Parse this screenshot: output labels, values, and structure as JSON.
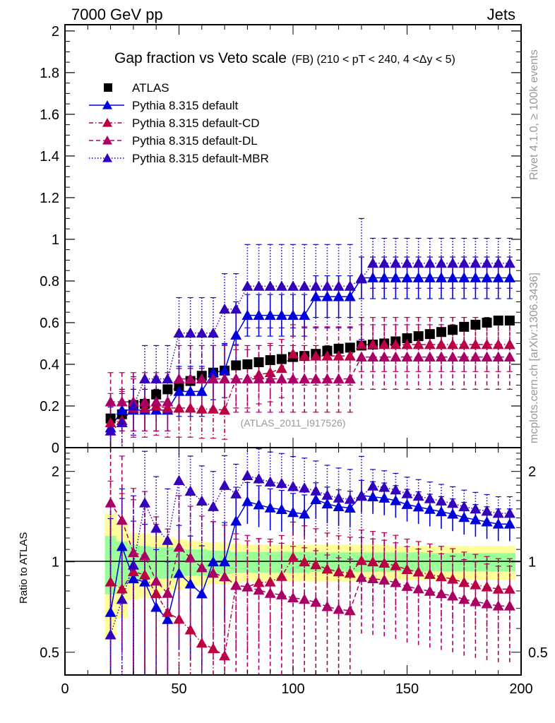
{
  "header": {
    "left": "7000 GeV pp",
    "right": "Jets"
  },
  "side_labels": {
    "rivet": "Rivet 4.1.0, ≥ 100k events",
    "mcplots": "mcplots.cern.ch [arXiv:1306.3436]"
  },
  "chart_data": [
    {
      "type": "scatter",
      "panel": "main",
      "title": "Gap fraction vs Veto scale",
      "subtitle": "(FB) (210 < pT < 240, 4 <Δy < 5)",
      "watermark": "(ATLAS_2011_I917526)",
      "xlabel": "",
      "ylabel": "",
      "xlim": [
        0,
        200
      ],
      "ylim": [
        0,
        2.03
      ],
      "yticks": [
        "0",
        "0.2",
        "0.4",
        "0.6",
        "0.8",
        "1",
        "1.2",
        "1.4",
        "1.6",
        "1.8",
        "2"
      ],
      "legend_position": "top-left",
      "x": [
        20,
        25,
        30,
        35,
        40,
        45,
        50,
        55,
        60,
        65,
        70,
        75,
        80,
        85,
        90,
        95,
        100,
        105,
        110,
        115,
        120,
        125,
        130,
        135,
        140,
        145,
        150,
        155,
        160,
        165,
        170,
        175,
        180,
        185,
        190,
        195
      ],
      "series": [
        {
          "name": "ATLAS",
          "color": "#000000",
          "marker": "square",
          "line": "none",
          "values": [
            0.14,
            0.16,
            0.205,
            0.21,
            0.255,
            0.28,
            0.295,
            0.32,
            0.345,
            0.36,
            0.37,
            0.395,
            0.4,
            0.41,
            0.42,
            0.425,
            0.435,
            0.44,
            0.45,
            0.465,
            0.475,
            0.48,
            0.49,
            0.495,
            0.5,
            0.51,
            0.525,
            0.535,
            0.545,
            0.555,
            0.565,
            0.58,
            0.59,
            0.6,
            0.61,
            0.61
          ],
          "errors": [
            0.02,
            0.02,
            0.02,
            0.02,
            0.02,
            0.02,
            0.015,
            0.015,
            0.015,
            0.015,
            0.015,
            0.015,
            0.015,
            0.015,
            0.015,
            0.015,
            0.015,
            0.015,
            0.015,
            0.015,
            0.015,
            0.015,
            0.015,
            0.015,
            0.015,
            0.015,
            0.015,
            0.015,
            0.015,
            0.015,
            0.015,
            0.015,
            0.015,
            0.015,
            0.015,
            0.015
          ]
        },
        {
          "name": "Pythia 8.315 default",
          "color": "#0000dd",
          "marker": "triangle",
          "line": "solid",
          "values": [
            0.095,
            0.18,
            0.18,
            0.18,
            0.18,
            0.18,
            0.27,
            0.27,
            0.27,
            0.36,
            0.37,
            0.54,
            0.635,
            0.635,
            0.635,
            0.635,
            0.635,
            0.635,
            0.725,
            0.725,
            0.725,
            0.725,
            0.815,
            0.815,
            0.815,
            0.815,
            0.815,
            0.815,
            0.815,
            0.815,
            0.815,
            0.815,
            0.815,
            0.815,
            0.815,
            0.815
          ],
          "errors": [
            0.1,
            0.1,
            0.1,
            0.1,
            0.1,
            0.1,
            0.12,
            0.12,
            0.12,
            0.13,
            0.13,
            0.16,
            0.1,
            0.1,
            0.1,
            0.1,
            0.1,
            0.1,
            0.1,
            0.1,
            0.1,
            0.1,
            0.1,
            0.1,
            0.1,
            0.1,
            0.1,
            0.1,
            0.1,
            0.1,
            0.1,
            0.1,
            0.1,
            0.1,
            0.1,
            0.1
          ]
        },
        {
          "name": "Pythia 8.315 default-CD",
          "color": "#bb0044",
          "marker": "triangle",
          "line": "dashdot",
          "values": [
            0.12,
            0.13,
            0.19,
            0.19,
            0.2,
            0.19,
            0.19,
            0.19,
            0.185,
            0.185,
            0.18,
            0.33,
            0.33,
            0.35,
            0.36,
            0.38,
            0.45,
            0.44,
            0.44,
            0.44,
            0.44,
            0.44,
            0.495,
            0.495,
            0.495,
            0.495,
            0.495,
            0.495,
            0.495,
            0.495,
            0.495,
            0.495,
            0.495,
            0.495,
            0.495,
            0.495
          ],
          "errors": [
            0.14,
            0.14,
            0.14,
            0.14,
            0.14,
            0.14,
            0.14,
            0.14,
            0.14,
            0.14,
            0.14,
            0.14,
            0.14,
            0.14,
            0.14,
            0.14,
            0.14,
            0.14,
            0.14,
            0.14,
            0.14,
            0.14,
            0.13,
            0.13,
            0.13,
            0.13,
            0.13,
            0.13,
            0.13,
            0.13,
            0.13,
            0.13,
            0.13,
            0.13,
            0.13,
            0.13
          ]
        },
        {
          "name": "Pythia 8.315 default-DL",
          "color": "#aa0066",
          "marker": "triangle",
          "line": "dashed",
          "values": [
            0.22,
            0.22,
            0.22,
            0.22,
            0.22,
            0.22,
            0.33,
            0.33,
            0.33,
            0.33,
            0.33,
            0.33,
            0.33,
            0.33,
            0.33,
            0.33,
            0.33,
            0.33,
            0.33,
            0.33,
            0.33,
            0.33,
            0.435,
            0.435,
            0.435,
            0.435,
            0.435,
            0.435,
            0.435,
            0.435,
            0.435,
            0.435,
            0.435,
            0.435,
            0.435,
            0.435
          ],
          "errors": [
            0.14,
            0.14,
            0.14,
            0.14,
            0.14,
            0.14,
            0.16,
            0.16,
            0.16,
            0.16,
            0.16,
            0.16,
            0.16,
            0.16,
            0.16,
            0.16,
            0.16,
            0.16,
            0.16,
            0.16,
            0.16,
            0.16,
            0.155,
            0.155,
            0.155,
            0.155,
            0.155,
            0.155,
            0.155,
            0.155,
            0.155,
            0.155,
            0.155,
            0.155,
            0.155,
            0.155
          ]
        },
        {
          "name": "Pythia 8.315 default-MBR",
          "color": "#3300bb",
          "marker": "triangle",
          "line": "dotted",
          "values": [
            0.08,
            0.12,
            0.2,
            0.33,
            0.33,
            0.33,
            0.55,
            0.55,
            0.55,
            0.55,
            0.665,
            0.665,
            0.775,
            0.775,
            0.775,
            0.775,
            0.775,
            0.775,
            0.775,
            0.775,
            0.775,
            0.775,
            0.81,
            0.885,
            0.885,
            0.885,
            0.885,
            0.885,
            0.885,
            0.885,
            0.885,
            0.885,
            0.885,
            0.885,
            0.885,
            0.885
          ],
          "errors": [
            0.14,
            0.14,
            0.14,
            0.16,
            0.16,
            0.16,
            0.17,
            0.17,
            0.17,
            0.17,
            0.17,
            0.17,
            0.2,
            0.2,
            0.2,
            0.2,
            0.2,
            0.2,
            0.2,
            0.2,
            0.2,
            0.2,
            0.29,
            0.12,
            0.12,
            0.12,
            0.12,
            0.12,
            0.12,
            0.12,
            0.12,
            0.12,
            0.12,
            0.12,
            0.12,
            0.12
          ]
        }
      ]
    },
    {
      "type": "scatter",
      "panel": "ratio",
      "ylabel": "Ratio to ATLAS",
      "yscale": "log",
      "ylim": [
        0.42,
        2.4
      ],
      "yticks": [
        "0.5",
        "1",
        "2"
      ],
      "xlim": [
        0,
        200
      ],
      "xticks": [
        "0",
        "50",
        "100",
        "150",
        "200"
      ],
      "reference_line": 1,
      "band_colors": {
        "inner": "#99ff99",
        "outer": "#ffff99"
      },
      "band_inner_halfwidth": [
        0.22,
        0.17,
        0.14,
        0.13,
        0.12,
        0.12,
        0.11,
        0.1,
        0.1,
        0.09,
        0.09,
        0.08,
        0.08,
        0.08,
        0.08,
        0.08,
        0.08,
        0.08,
        0.075,
        0.075,
        0.075,
        0.075,
        0.075,
        0.075,
        0.075,
        0.075,
        0.075,
        0.075,
        0.07,
        0.07,
        0.07,
        0.07,
        0.07,
        0.07,
        0.07,
        0.07
      ],
      "band_outer_halfwidth": [
        0.45,
        0.35,
        0.25,
        0.24,
        0.22,
        0.2,
        0.19,
        0.18,
        0.17,
        0.16,
        0.16,
        0.15,
        0.14,
        0.14,
        0.14,
        0.14,
        0.14,
        0.14,
        0.14,
        0.14,
        0.14,
        0.14,
        0.14,
        0.14,
        0.14,
        0.13,
        0.13,
        0.13,
        0.13,
        0.13,
        0.13,
        0.13,
        0.13,
        0.13,
        0.13,
        0.13
      ]
    }
  ]
}
